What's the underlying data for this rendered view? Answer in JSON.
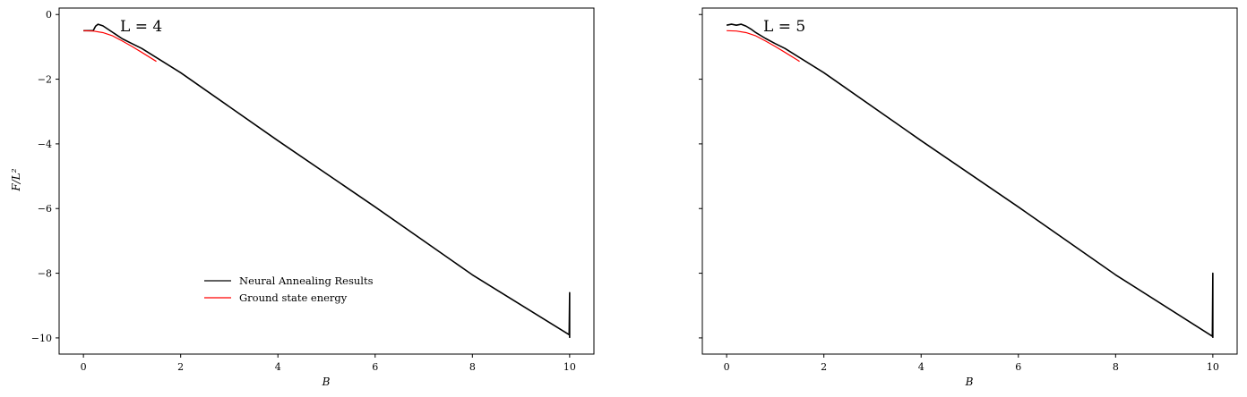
{
  "chart_data": [
    {
      "type": "line",
      "annotation": "L = 4",
      "xlabel": "B",
      "ylabel": "F/L²",
      "xlim": [
        -0.5,
        10.5
      ],
      "ylim": [
        -10.5,
        0.2
      ],
      "xticks": [
        0,
        2,
        4,
        6,
        8,
        10
      ],
      "yticks": [
        0,
        -2,
        -4,
        -6,
        -8,
        -10
      ],
      "xtick_labels": [
        "0",
        "2",
        "4",
        "6",
        "8",
        "10"
      ],
      "ytick_labels": [
        "0",
        "−2",
        "−4",
        "−6",
        "−8",
        "−10"
      ],
      "legend": "lower-left",
      "grid": false,
      "series": [
        {
          "name": "Neural Annealing Results",
          "color": "#000000",
          "x": [
            0,
            0.2,
            0.25,
            0.3,
            0.4,
            0.5,
            0.6,
            0.8,
            1.0,
            1.2,
            2,
            4,
            6,
            8,
            9.99,
            10.0,
            10.0
          ],
          "y": [
            -0.5,
            -0.5,
            -0.36,
            -0.3,
            -0.35,
            -0.45,
            -0.55,
            -0.75,
            -0.9,
            -1.05,
            -1.8,
            -3.9,
            -5.95,
            -8.05,
            -9.9,
            -8.6,
            -10.0
          ]
        },
        {
          "name": "Ground state energy",
          "color": "#ff0000",
          "x": [
            0,
            0.2,
            0.4,
            0.6,
            0.8,
            1.0,
            1.2,
            1.5
          ],
          "y": [
            -0.5,
            -0.51,
            -0.56,
            -0.66,
            -0.82,
            -0.99,
            -1.17,
            -1.45
          ]
        }
      ]
    },
    {
      "type": "line",
      "annotation": "L = 5",
      "xlabel": "B",
      "ylabel": "",
      "xlim": [
        -0.5,
        10.5
      ],
      "ylim": [
        -10.5,
        0.2
      ],
      "xticks": [
        0,
        2,
        4,
        6,
        8,
        10
      ],
      "yticks": [
        0,
        -2,
        -4,
        -6,
        -8,
        -10
      ],
      "xtick_labels": [
        "0",
        "2",
        "4",
        "6",
        "8",
        "10"
      ],
      "grid": false,
      "series": [
        {
          "color": "#000000",
          "x": [
            0,
            0.1,
            0.2,
            0.3,
            0.4,
            0.5,
            0.6,
            0.8,
            1.0,
            1.2,
            2,
            4,
            6,
            8,
            9.99,
            10.0,
            10.0
          ],
          "y": [
            -0.33,
            -0.3,
            -0.33,
            -0.3,
            -0.36,
            -0.45,
            -0.56,
            -0.74,
            -0.9,
            -1.05,
            -1.8,
            -3.9,
            -5.95,
            -8.05,
            -9.95,
            -8.0,
            -10.0
          ]
        },
        {
          "color": "#ff0000",
          "x": [
            0,
            0.2,
            0.4,
            0.6,
            0.8,
            1.0,
            1.2,
            1.5
          ],
          "y": [
            -0.5,
            -0.51,
            -0.56,
            -0.66,
            -0.82,
            -0.99,
            -1.17,
            -1.45
          ]
        }
      ]
    }
  ]
}
